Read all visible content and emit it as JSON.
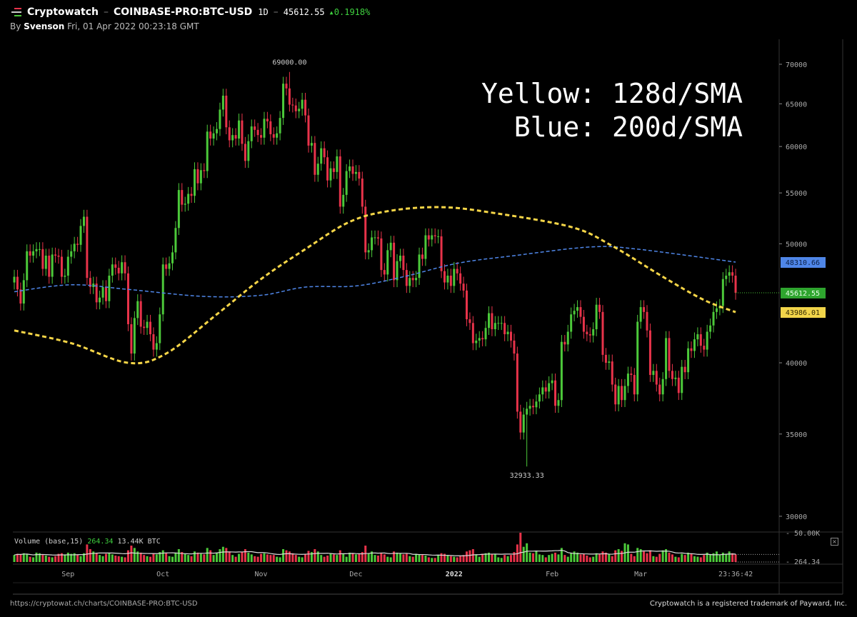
{
  "header": {
    "app_name": "Cryptowatch",
    "market": "COINBASE-PRO:BTC-USD",
    "interval": "1D",
    "price": "45612.55",
    "change": "▴0.1918%",
    "by_prefix": "By",
    "author": "Svenson",
    "timestamp": "Fri, 01 Apr 2022 00:23:18 GMT"
  },
  "overlay": {
    "line1": "Yellow: 128d/SMA",
    "line2": "Blue: 200d/SMA"
  },
  "colors": {
    "up": "#4cc93a",
    "down": "#e8334a",
    "sma128": "#f5d547",
    "sma200": "#4f86e8",
    "background": "#000000",
    "grid": "#2a2a2a"
  },
  "chart_data": {
    "type": "candlestick",
    "scale": "log",
    "ylim": [
      28500,
      72000
    ],
    "start_date": "2021-08-15",
    "first_open": 46500,
    "closes": [
      47000,
      45900,
      44700,
      46700,
      49300,
      48900,
      49300,
      49500,
      49500,
      47700,
      48900,
      47000,
      49000,
      48900,
      48800,
      47000,
      47100,
      48800,
      49300,
      50000,
      49900,
      51700,
      52600,
      46900,
      46100,
      46400,
      44800,
      45200,
      46100,
      44900,
      47100,
      48100,
      47800,
      47300,
      48300,
      47300,
      43000,
      40700,
      43500,
      44900,
      42800,
      42700,
      43200,
      42200,
      41000,
      41500,
      43800,
      48100,
      47700,
      48200,
      49200,
      51500,
      55300,
      53800,
      53900,
      54900,
      54700,
      57500,
      56000,
      57400,
      57300,
      61700,
      60900,
      61500,
      62000,
      64300,
      66000,
      62200,
      60700,
      61300,
      60900,
      63000,
      60300,
      58400,
      60600,
      62300,
      61900,
      61300,
      61000,
      63200,
      62900,
      61400,
      61000,
      61500,
      63300,
      67500,
      66900,
      64900,
      64800,
      64100,
      64400,
      65500,
      63600,
      60100,
      60400,
      56900,
      58100,
      59800,
      58800,
      56300,
      57600,
      57200,
      58900,
      53600,
      54800,
      57300,
      57800,
      57000,
      57200,
      56500,
      53600,
      49200,
      49400,
      50600,
      50600,
      50500,
      47600,
      47200,
      49400,
      50100,
      46700,
      48400,
      48900,
      47600,
      46200,
      46900,
      46700,
      46900,
      49000,
      48600,
      50800,
      50400,
      50800,
      50700,
      50700,
      47500,
      46500,
      47100,
      46200,
      47700,
      47300,
      46400,
      45800,
      43400,
      43100,
      41500,
      41700,
      41900,
      41800,
      42700,
      43900,
      42600,
      43100,
      43100,
      43100,
      42200,
      42400,
      41700,
      40700,
      36500,
      35100,
      36300,
      36700,
      36900,
      36800,
      37200,
      37700,
      38200,
      37900,
      38500,
      38700,
      36900,
      37300,
      41600,
      41400,
      42400,
      43800,
      44100,
      44400,
      43600,
      42400,
      42200,
      42100,
      42600,
      44600,
      44000,
      40600,
      40000,
      40100,
      38400,
      37000,
      38300,
      37300,
      38300,
      39200,
      39100,
      37700,
      43200,
      44400,
      44000,
      42500,
      39100,
      39400,
      38400,
      37700,
      38800,
      41900,
      39400,
      38800,
      38900,
      37800,
      39700,
      39300,
      41100,
      40900,
      41800,
      42200,
      41300,
      41000,
      42400,
      42900,
      44000,
      44300,
      44500,
      46800,
      47100,
      47400,
      47100,
      45612.55
    ],
    "volumes_k_btc": [
      12,
      14,
      13,
      15,
      14,
      9,
      8,
      16,
      15,
      12,
      11,
      9,
      8,
      10,
      14,
      15,
      13,
      16,
      14,
      15,
      12,
      10,
      15,
      30,
      22,
      18,
      15,
      12,
      10,
      14,
      15,
      13,
      11,
      10,
      9,
      8,
      20,
      28,
      24,
      18,
      16,
      12,
      10,
      9,
      14,
      13,
      17,
      20,
      15,
      10,
      9,
      16,
      22,
      17,
      14,
      12,
      10,
      18,
      16,
      14,
      13,
      24,
      20,
      12,
      16,
      22,
      26,
      24,
      18,
      12,
      9,
      14,
      17,
      22,
      16,
      13,
      10,
      9,
      14,
      15,
      13,
      12,
      12,
      9,
      8,
      22,
      20,
      18,
      15,
      12,
      9,
      8,
      13,
      19,
      17,
      22,
      18,
      12,
      9,
      11,
      15,
      13,
      12,
      20,
      14,
      9,
      16,
      15,
      13,
      14,
      17,
      28,
      15,
      18,
      12,
      11,
      16,
      13,
      9,
      8,
      18,
      16,
      15,
      13,
      14,
      10,
      9,
      14,
      13,
      12,
      11,
      8,
      7,
      7,
      11,
      15,
      14,
      12,
      10,
      9,
      8,
      10,
      12,
      18,
      20,
      22,
      13,
      9,
      14,
      15,
      16,
      14,
      13,
      8,
      7,
      12,
      10,
      12,
      17,
      30,
      50,
      26,
      32,
      16,
      15,
      19,
      13,
      12,
      8,
      12,
      14,
      16,
      13,
      24,
      12,
      9,
      15,
      18,
      16,
      13,
      14,
      11,
      8,
      9,
      15,
      14,
      18,
      16,
      14,
      10,
      20,
      22,
      19,
      32,
      30,
      14,
      10,
      24,
      22,
      18,
      15,
      20,
      10,
      9,
      14,
      20,
      22,
      16,
      13,
      9,
      8,
      14,
      12,
      16,
      14,
      10,
      9,
      8,
      12,
      16,
      13,
      15,
      18,
      12,
      16,
      14,
      18,
      15,
      13
    ],
    "sma128": [
      [
        "2021-08-15",
        42500
      ],
      [
        "2021-09-02",
        41500
      ],
      [
        "2021-09-20",
        40000
      ],
      [
        "2021-10-02",
        40700
      ],
      [
        "2021-10-18",
        43800
      ],
      [
        "2021-11-01",
        46800
      ],
      [
        "2021-11-15",
        49500
      ],
      [
        "2021-11-29",
        52100
      ],
      [
        "2021-12-12",
        53200
      ],
      [
        "2021-12-28",
        53550
      ],
      [
        "2022-01-13",
        53000
      ],
      [
        "2022-02-07",
        51600
      ],
      [
        "2022-02-20",
        49800
      ],
      [
        "2022-03-08",
        47000
      ],
      [
        "2022-03-21",
        45000
      ],
      [
        "2022-03-31",
        43986.01
      ]
    ],
    "sma200": [
      [
        "2021-08-15",
        45700
      ],
      [
        "2021-09-02",
        46300
      ],
      [
        "2021-09-20",
        45900
      ],
      [
        "2021-10-14",
        45300
      ],
      [
        "2021-11-01",
        45400
      ],
      [
        "2021-11-15",
        46100
      ],
      [
        "2021-12-01",
        46200
      ],
      [
        "2021-12-16",
        47000
      ],
      [
        "2022-01-02",
        48200
      ],
      [
        "2022-01-20",
        48900
      ],
      [
        "2022-02-13",
        49700
      ],
      [
        "2022-02-28",
        49500
      ],
      [
        "2022-03-31",
        48310.66
      ]
    ],
    "annotations": [
      {
        "date": "2021-11-10",
        "type": "high",
        "value": 69000,
        "label": "69000.00"
      },
      {
        "date": "2022-01-24",
        "type": "low",
        "value": 32933.33,
        "label": "32933.33"
      }
    ],
    "y_ticks": [
      {
        "value": 70000,
        "label": "70000"
      },
      {
        "value": 65000,
        "label": "65000"
      },
      {
        "value": 60000,
        "label": "60000"
      },
      {
        "value": 55000,
        "label": "55000"
      },
      {
        "value": 50000,
        "label": "50000"
      },
      {
        "value": 40000,
        "label": "40000"
      },
      {
        "value": 35000,
        "label": "35000"
      },
      {
        "value": 30000,
        "label": "30000"
      }
    ],
    "x_ticks": [
      {
        "date": "2021-09-01",
        "label": "Sep"
      },
      {
        "date": "2021-10-01",
        "label": "Oct"
      },
      {
        "date": "2021-11-01",
        "label": "Nov"
      },
      {
        "date": "2021-12-01",
        "label": "Dec"
      },
      {
        "date": "2022-01-01",
        "label": "2022"
      },
      {
        "date": "2022-02-01",
        "label": "Feb"
      },
      {
        "date": "2022-03-01",
        "label": "Mar"
      },
      {
        "date": "2022-03-31",
        "label": "23:36:42"
      }
    ],
    "price_labels": [
      {
        "label": "48310.66",
        "value": 48310.66,
        "color": "#4f86e8",
        "text": "#0b1f45"
      },
      {
        "label": "45612.55",
        "value": 45612.55,
        "color": "#2ea52e",
        "text": "#e8ffe8"
      },
      {
        "label": "43986.01",
        "value": 43986.01,
        "color": "#f2d54a",
        "text": "#332a00"
      }
    ],
    "volume": {
      "label": "Volume (base,15)",
      "last": "264.34",
      "total": "13.44K BTC",
      "max_label": "50.00K",
      "min_label": "264.34",
      "max_k": 50
    }
  },
  "footer": {
    "url": "https://cryptowat.ch/charts/COINBASE-PRO:BTC-USD",
    "trademark": "Cryptowatch is a registered trademark of Payward, Inc."
  }
}
